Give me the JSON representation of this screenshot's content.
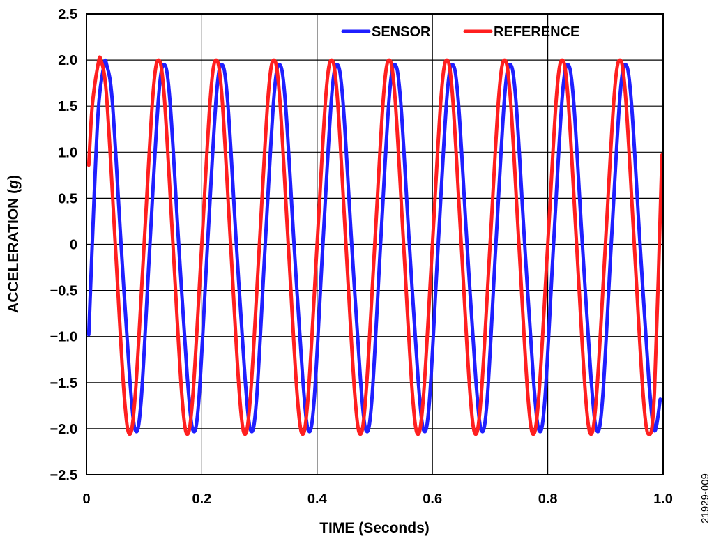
{
  "chart_data": {
    "type": "line",
    "xlabel": "TIME (Seconds)",
    "ylabel_main": "ACCELERATION (",
    "ylabel_italic": "g",
    "ylabel_end": ")",
    "xlim": [
      0,
      1.0
    ],
    "ylim": [
      -2.5,
      2.5
    ],
    "x_ticks": [
      "0",
      "0.2",
      "0.4",
      "0.6",
      "0.8",
      "1.0"
    ],
    "y_ticks": [
      "2.5",
      "2.0",
      "1.5",
      "1.0",
      "0.5",
      "0",
      "−0.5",
      "−1.0",
      "−1.5",
      "−2.0",
      "−2.5"
    ],
    "grid": true,
    "legend_position": "top-right",
    "series": [
      {
        "name": "SENSOR",
        "color": "#1f1fff",
        "x": [
          0.004,
          0.01,
          0.02,
          0.03,
          0.035,
          0.045,
          0.06,
          0.075,
          0.085,
          0.095,
          0.11,
          0.125,
          0.135,
          0.145,
          0.16,
          0.175,
          0.185,
          0.195,
          0.21,
          0.225,
          0.235,
          0.245,
          0.26,
          0.275,
          0.285,
          0.295,
          0.31,
          0.325,
          0.335,
          0.345,
          0.36,
          0.375,
          0.385,
          0.395,
          0.41,
          0.425,
          0.435,
          0.445,
          0.46,
          0.475,
          0.485,
          0.495,
          0.51,
          0.525,
          0.535,
          0.545,
          0.56,
          0.575,
          0.585,
          0.595,
          0.61,
          0.625,
          0.635,
          0.645,
          0.66,
          0.675,
          0.685,
          0.695,
          0.71,
          0.725,
          0.735,
          0.745,
          0.76,
          0.775,
          0.785,
          0.795,
          0.81,
          0.825,
          0.835,
          0.845,
          0.86,
          0.875,
          0.885,
          0.895,
          0.91,
          0.925,
          0.935,
          0.945,
          0.96,
          0.975,
          0.985,
          0.995
        ],
        "values": [
          -0.98,
          0.0,
          1.41,
          1.93,
          1.95,
          1.54,
          0.0,
          -1.45,
          -2.02,
          -1.68,
          0.0,
          1.59,
          1.95,
          1.54,
          0.0,
          -1.45,
          -2.02,
          -1.68,
          0.0,
          1.59,
          1.95,
          1.54,
          0.0,
          -1.45,
          -2.02,
          -1.68,
          0.0,
          1.59,
          1.95,
          1.54,
          0.0,
          -1.45,
          -2.02,
          -1.68,
          0.0,
          1.59,
          1.95,
          1.54,
          0.0,
          -1.45,
          -2.02,
          -1.68,
          0.0,
          1.59,
          1.95,
          1.54,
          0.0,
          -1.45,
          -2.02,
          -1.68,
          0.0,
          1.59,
          1.95,
          1.54,
          0.0,
          -1.45,
          -2.02,
          -1.68,
          0.0,
          1.59,
          1.95,
          1.54,
          0.0,
          -1.45,
          -2.02,
          -1.68,
          0.0,
          1.59,
          1.95,
          1.54,
          0.0,
          -1.45,
          -2.02,
          -1.68,
          0.0,
          1.59,
          1.95,
          1.54,
          0.0,
          -1.45,
          -2.02,
          -1.68
        ]
      },
      {
        "name": "REFERENCE",
        "color": "#ff1f1f",
        "x": [
          0.004,
          0.01,
          0.02,
          0.025,
          0.035,
          0.05,
          0.065,
          0.075,
          0.085,
          0.1,
          0.115,
          0.125,
          0.135,
          0.15,
          0.165,
          0.175,
          0.185,
          0.2,
          0.215,
          0.225,
          0.235,
          0.25,
          0.265,
          0.275,
          0.285,
          0.3,
          0.315,
          0.325,
          0.335,
          0.35,
          0.365,
          0.375,
          0.385,
          0.4,
          0.415,
          0.425,
          0.435,
          0.45,
          0.465,
          0.475,
          0.485,
          0.5,
          0.515,
          0.525,
          0.535,
          0.55,
          0.565,
          0.575,
          0.585,
          0.6,
          0.615,
          0.625,
          0.635,
          0.65,
          0.665,
          0.675,
          0.685,
          0.7,
          0.715,
          0.725,
          0.735,
          0.75,
          0.765,
          0.775,
          0.785,
          0.8,
          0.815,
          0.825,
          0.835,
          0.85,
          0.865,
          0.875,
          0.885,
          0.9,
          0.915,
          0.925,
          0.935,
          0.95,
          0.965,
          0.975,
          0.985,
          0.998
        ],
        "values": [
          0.86,
          1.5,
          1.95,
          2.0,
          1.6,
          0.0,
          -1.6,
          -2.06,
          -1.6,
          0.0,
          1.6,
          2.0,
          1.6,
          0.0,
          -1.6,
          -2.06,
          -1.6,
          0.0,
          1.6,
          2.0,
          1.6,
          0.0,
          -1.6,
          -2.06,
          -1.6,
          0.0,
          1.6,
          2.0,
          1.6,
          0.0,
          -1.6,
          -2.06,
          -1.6,
          0.0,
          1.6,
          2.0,
          1.6,
          0.0,
          -1.6,
          -2.06,
          -1.6,
          0.0,
          1.6,
          2.0,
          1.6,
          0.0,
          -1.6,
          -2.06,
          -1.6,
          0.0,
          1.6,
          2.0,
          1.6,
          0.0,
          -1.6,
          -2.06,
          -1.6,
          0.0,
          1.6,
          2.0,
          1.6,
          0.0,
          -1.6,
          -2.06,
          -1.6,
          0.0,
          1.6,
          2.0,
          1.6,
          0.0,
          -1.6,
          -2.06,
          -1.6,
          0.0,
          1.6,
          2.0,
          1.6,
          0.0,
          -1.6,
          -2.06,
          -1.6,
          0.97
        ]
      }
    ]
  },
  "figure_id": "21929-009"
}
